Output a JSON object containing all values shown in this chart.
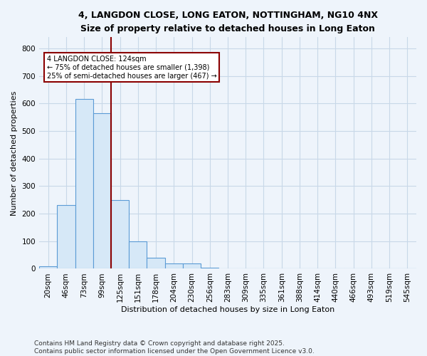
{
  "title_line1": "4, LANGDON CLOSE, LONG EATON, NOTTINGHAM, NG10 4NX",
  "title_line2": "Size of property relative to detached houses in Long Eaton",
  "xlabel": "Distribution of detached houses by size in Long Eaton",
  "ylabel": "Number of detached properties",
  "footer_line1": "Contains HM Land Registry data © Crown copyright and database right 2025.",
  "footer_line2": "Contains public sector information licensed under the Open Government Licence v3.0.",
  "categories": [
    "20sqm",
    "46sqm",
    "73sqm",
    "99sqm",
    "125sqm",
    "151sqm",
    "178sqm",
    "204sqm",
    "230sqm",
    "256sqm",
    "283sqm",
    "309sqm",
    "335sqm",
    "361sqm",
    "388sqm",
    "414sqm",
    "440sqm",
    "466sqm",
    "493sqm",
    "519sqm",
    "545sqm"
  ],
  "values": [
    8,
    230,
    615,
    565,
    250,
    100,
    40,
    20,
    20,
    5,
    0,
    0,
    0,
    0,
    0,
    0,
    0,
    0,
    0,
    0,
    0
  ],
  "bar_color_fill": "#d6e8f7",
  "bar_color_edge": "#5b9bd5",
  "property_line_color": "#8b0000",
  "annotation_text_line1": "4 LANGDON CLOSE: 124sqm",
  "annotation_text_line2": "← 75% of detached houses are smaller (1,398)",
  "annotation_text_line3": "25% of semi-detached houses are larger (467) →",
  "annotation_box_color": "#8b0000",
  "annotation_box_fill": "white",
  "grid_color": "#c8d8e8",
  "background_color": "#eef4fb",
  "ylim": [
    0,
    840
  ],
  "yticks": [
    0,
    100,
    200,
    300,
    400,
    500,
    600,
    700,
    800
  ],
  "title_fontsize": 9,
  "subtitle_fontsize": 8,
  "tick_fontsize": 7.5,
  "ylabel_fontsize": 8,
  "xlabel_fontsize": 8,
  "footer_fontsize": 6.5,
  "annot_fontsize": 7
}
